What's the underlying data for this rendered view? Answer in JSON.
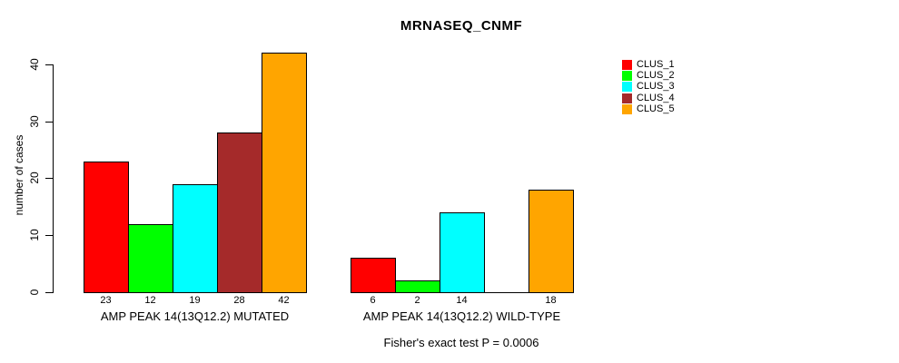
{
  "title": "MRNASEQ_CNMF",
  "chart_data": {
    "type": "bar",
    "title": "MRNASEQ_CNMF",
    "ylabel": "number of cases",
    "ylim": [
      0,
      42
    ],
    "yticks": [
      0,
      10,
      20,
      30,
      40
    ],
    "grid": false,
    "legend_position": "top-right",
    "clusters": [
      {
        "name": "CLUS_1",
        "color": "#FF0000"
      },
      {
        "name": "CLUS_2",
        "color": "#00FF00"
      },
      {
        "name": "CLUS_3",
        "color": "#00FFFF"
      },
      {
        "name": "CLUS_4",
        "color": "#A52A2A"
      },
      {
        "name": "CLUS_5",
        "color": "#FFA500"
      }
    ],
    "groups": [
      {
        "label": "AMP PEAK 14(13Q12.2) MUTATED",
        "values": [
          23,
          12,
          19,
          28,
          42
        ],
        "bar_labels": [
          "23",
          "12",
          "19",
          "28",
          "42"
        ]
      },
      {
        "label": "AMP PEAK 14(13Q12.2) WILD-TYPE",
        "values": [
          6,
          2,
          14,
          0,
          18
        ],
        "bar_labels": [
          "6",
          "2",
          "14",
          "",
          "18"
        ]
      }
    ],
    "series": [
      {
        "name": "CLUS_1",
        "values": [
          23,
          6
        ]
      },
      {
        "name": "CLUS_2",
        "values": [
          12,
          2
        ]
      },
      {
        "name": "CLUS_3",
        "values": [
          19,
          14
        ]
      },
      {
        "name": "CLUS_4",
        "values": [
          28,
          0
        ]
      },
      {
        "name": "CLUS_5",
        "values": [
          42,
          18
        ]
      }
    ],
    "annotation": "Fisher's exact test P = 0.0006"
  }
}
